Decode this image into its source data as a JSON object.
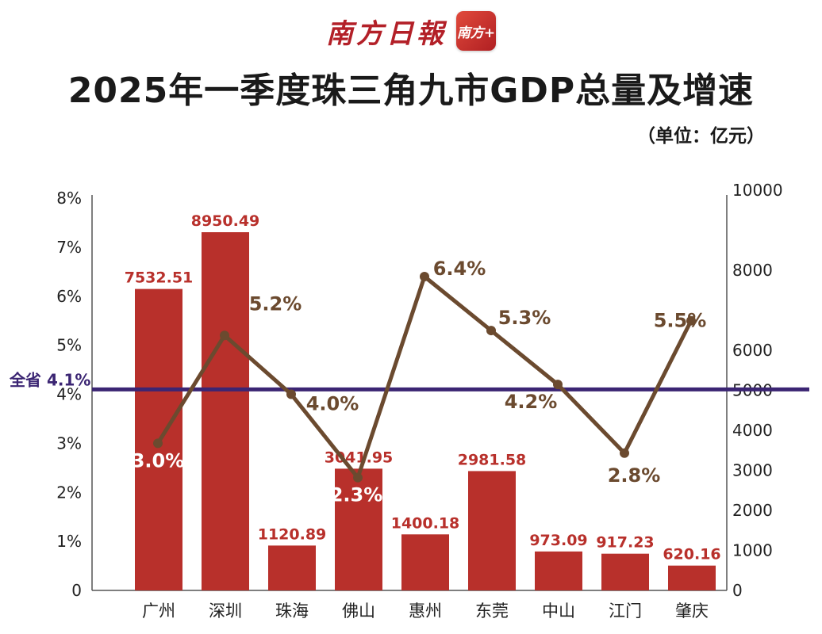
{
  "header": {
    "brand_name": "南方日報",
    "app_logo_text": "南方+"
  },
  "chart_data": {
    "type": "bar",
    "title": "2025年一季度珠三角九市GDP总量及增速",
    "unit": "（单位：亿元）",
    "categories": [
      "广州",
      "深圳",
      "珠海",
      "佛山",
      "惠州",
      "东莞",
      "中山",
      "江门",
      "肇庆"
    ],
    "series": [
      {
        "type": "bar",
        "axis": "right",
        "values": [
          7532.51,
          8950.49,
          1120.89,
          3041.95,
          1400.18,
          2981.58,
          973.09,
          917.23,
          620.16
        ],
        "labels": [
          "7532.51",
          "8950.49",
          "1120.89",
          "3041.95",
          "1400.18",
          "2981.58",
          "973.09",
          "917.23",
          "620.16"
        ]
      },
      {
        "type": "line",
        "axis": "left",
        "values": [
          3.0,
          5.2,
          4.0,
          2.3,
          6.4,
          5.3,
          4.2,
          2.8,
          5.5
        ],
        "labels": [
          "3.0%",
          "5.2%",
          "4.0%",
          "2.3%",
          "6.4%",
          "5.3%",
          "4.2%",
          "2.8%",
          "5.5%"
        ]
      }
    ],
    "reference_line": {
      "label": "全省4.1%",
      "label_prefix": "全省",
      "label_value": "4.1%",
      "value": 4.1,
      "axis": "left"
    },
    "y_left": {
      "range": [
        0,
        8
      ],
      "ticks": [
        "0",
        "1%",
        "2%",
        "3%",
        "4%",
        "5%",
        "6%",
        "7%",
        "8%"
      ]
    },
    "y_right": {
      "range": [
        0,
        10000
      ],
      "ticks": [
        "0",
        "1000",
        "2000",
        "3000",
        "4000",
        "5000",
        "6000",
        "8000",
        "10000"
      ]
    },
    "grid": false,
    "colors": {
      "bar": "#b8302b",
      "bar_label": "#b8302b",
      "line": "#6b4a2f",
      "line_label": "#6b4a2f",
      "line_label_on_bar": "#ffffff",
      "reference_line": "#3b2573",
      "axis_text": "#222222",
      "axis_line": "#555555"
    }
  }
}
